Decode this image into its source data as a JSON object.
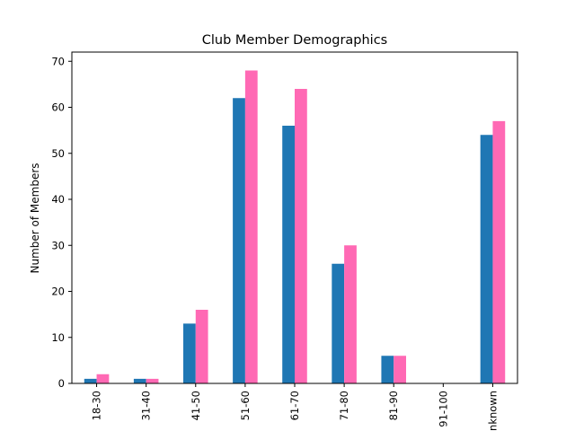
{
  "chart_data": {
    "type": "bar",
    "title": "Club Member Demographics",
    "xlabel": "",
    "ylabel": "Number of Members",
    "categories": [
      "18-30",
      "31-40",
      "41-50",
      "51-60",
      "61-70",
      "71-80",
      "81-90",
      "91-100",
      "Unknown"
    ],
    "ylim": [
      0,
      72
    ],
    "yticks": [
      "0",
      "10",
      "20",
      "30",
      "40",
      "50",
      "60",
      "70"
    ],
    "grid": false,
    "legend": "none",
    "series": [
      {
        "values": [
          1,
          1,
          13,
          62,
          56,
          26,
          6,
          0,
          54
        ],
        "color": "#1f77b4"
      },
      {
        "values": [
          2,
          1,
          16,
          68,
          64,
          30,
          6,
          0,
          57
        ],
        "color": "#ff69b4"
      }
    ]
  }
}
